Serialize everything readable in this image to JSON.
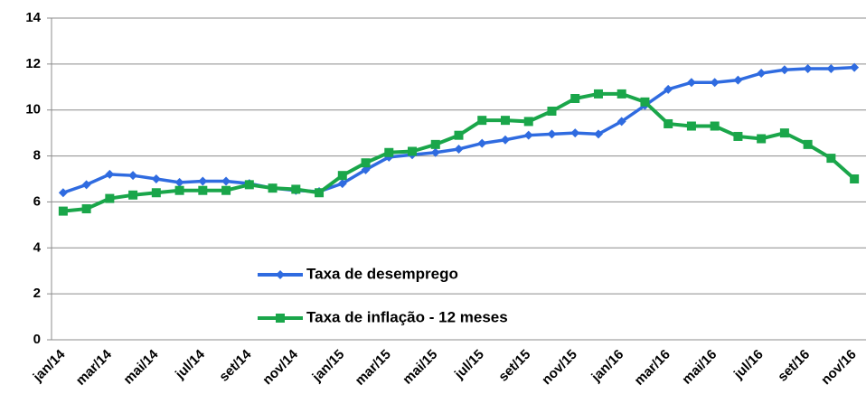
{
  "chart_data": {
    "type": "line",
    "categories": [
      "jan/14",
      null,
      "mar/14",
      null,
      "mai/14",
      null,
      "jul/14",
      null,
      "set/14",
      null,
      "nov/14",
      null,
      "jan/15",
      null,
      "mar/15",
      null,
      "mai/15",
      null,
      "jul/15",
      null,
      "set/15",
      null,
      "nov/15",
      null,
      "jan/16",
      null,
      "mar/16",
      null,
      "mai/16",
      null,
      "jul/16",
      null,
      "set/16",
      null,
      "nov/16"
    ],
    "series": [
      {
        "name": "Taxa de desemprego",
        "color": "#2f6be0",
        "marker": "diamond",
        "values": [
          6.4,
          6.75,
          7.2,
          7.15,
          7.0,
          6.85,
          6.9,
          6.9,
          6.8,
          6.6,
          6.5,
          6.45,
          6.8,
          7.4,
          7.95,
          8.05,
          8.15,
          8.3,
          8.55,
          8.7,
          8.9,
          8.95,
          9.0,
          8.95,
          9.5,
          10.2,
          10.9,
          11.2,
          11.2,
          11.3,
          11.6,
          11.75,
          11.8,
          11.8,
          11.85
        ]
      },
      {
        "name": "Taxa de inflação - 12 meses",
        "color": "#1aa64a",
        "marker": "square",
        "values": [
          5.6,
          5.7,
          6.15,
          6.3,
          6.4,
          6.5,
          6.5,
          6.5,
          6.75,
          6.6,
          6.55,
          6.4,
          7.15,
          7.7,
          8.15,
          8.2,
          8.5,
          8.9,
          9.55,
          9.55,
          9.5,
          9.95,
          10.5,
          10.7,
          10.7,
          10.35,
          9.4,
          9.3,
          9.3,
          8.85,
          8.75,
          9.0,
          8.5,
          7.9,
          7.0
        ]
      }
    ],
    "ylim": [
      0,
      14
    ],
    "yticks": [
      0,
      2,
      4,
      6,
      8,
      10,
      12,
      14
    ],
    "grid": true
  }
}
